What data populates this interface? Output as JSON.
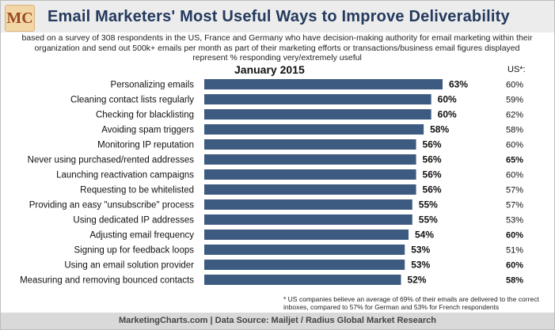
{
  "header": {
    "logo_text": "MC",
    "title": "Email Marketers' Most Useful Ways to Improve Deliverability",
    "subtitle": "based on a survey of 308 respondents in the US, France and Germany who have decision-making authority for email marketing within their organization and send out 500k+ emails per month as part of their marketing efforts or transactions/business email figures displayed represent % responding very/extremely useful",
    "period": "January 2015"
  },
  "us_column_header": "US*:",
  "footnote": "* US companies believe an average of 69% of their emails are delivered to the correct inboxes, compared to 57% for German and 53% for French respondents",
  "source": "MarketingCharts.com | Data Source: Mailjet / Radius Global Market Research",
  "colors": {
    "bar": "#3d5a80",
    "header_bg": "#ececec",
    "source_bg": "#d9d9d9"
  },
  "chart_data": {
    "type": "bar",
    "orientation": "horizontal",
    "title": "Email Marketers' Most Useful Ways to Improve Deliverability",
    "categories": [
      "Personalizing emails",
      "Cleaning contact lists regularly",
      "Checking for blacklisting",
      "Avoiding spam triggers",
      "Monitoring IP reputation",
      "Never using purchased/rented addresses",
      "Launching reactivation campaigns",
      "Requesting to be whitelisted",
      "Providing an easy \"unsubscribe\" process",
      "Using dedicated IP addresses",
      "Adjusting email frequency",
      "Signing up for feedback loops",
      "Using an email solution provider",
      "Measuring and removing bounced contacts"
    ],
    "values": [
      63,
      60,
      60,
      58,
      56,
      56,
      56,
      56,
      55,
      55,
      54,
      53,
      53,
      52
    ],
    "value_labels": [
      "63%",
      "60%",
      "60%",
      "58%",
      "56%",
      "56%",
      "56%",
      "56%",
      "55%",
      "55%",
      "54%",
      "53%",
      "53%",
      "52%"
    ],
    "us_values": [
      "60%",
      "59%",
      "62%",
      "58%",
      "60%",
      "65%",
      "60%",
      "57%",
      "57%",
      "53%",
      "60%",
      "51%",
      "60%",
      "58%"
    ],
    "us_bold": [
      false,
      false,
      false,
      false,
      false,
      true,
      false,
      false,
      false,
      false,
      true,
      false,
      true,
      true
    ],
    "xlim": [
      0,
      100
    ],
    "unit": "%"
  }
}
